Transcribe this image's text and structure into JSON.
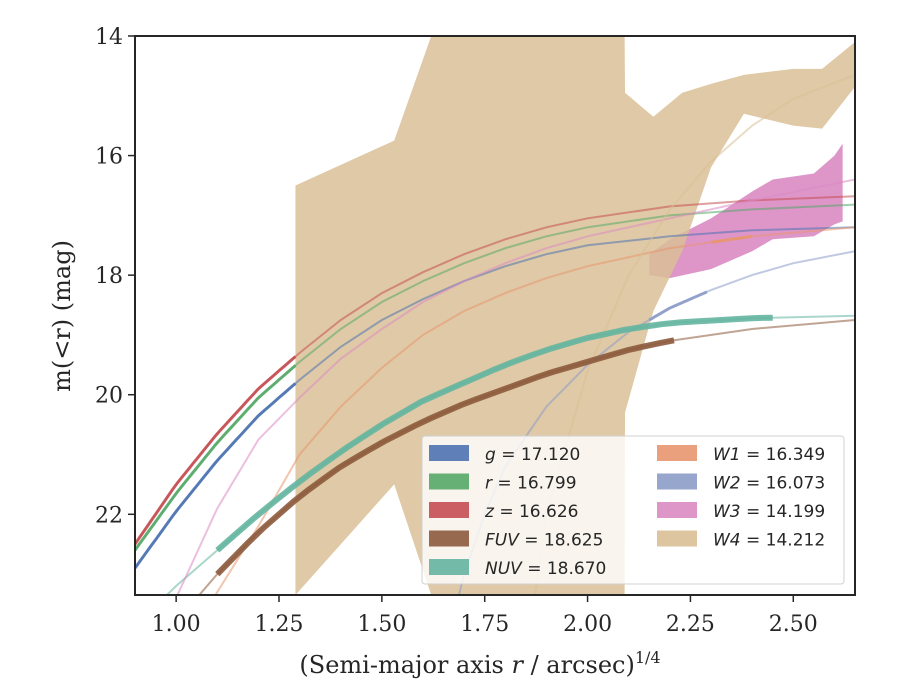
{
  "chart_data": {
    "type": "area",
    "title": "",
    "xlabel": "(Semi-major axis r / arcsec)",
    "xlabel_italic_symbol": "r",
    "xlabel_superscript": "1/4",
    "ylabel": "m(<r) (mag)",
    "xlim": [
      0.9,
      2.65
    ],
    "ylim": [
      23.35,
      14.0
    ],
    "y_inverted": true,
    "xticks": [
      1.0,
      1.25,
      1.5,
      1.75,
      2.0,
      2.25,
      2.5
    ],
    "xtick_labels": [
      "1.00",
      "1.25",
      "1.50",
      "1.75",
      "2.00",
      "2.25",
      "2.50"
    ],
    "yticks": [
      14,
      16,
      18,
      20,
      22
    ],
    "ytick_labels": [
      "14",
      "16",
      "18",
      "20",
      "22"
    ],
    "grid": false,
    "legend_position": "lower-right",
    "legend_columns": 2,
    "series": [
      {
        "name": "g = 17.120",
        "sym": "g",
        "val": "17.120",
        "color": "#4c72b0",
        "curve": [
          [
            0.9,
            22.9
          ],
          [
            1.0,
            21.95
          ],
          [
            1.1,
            21.1
          ],
          [
            1.2,
            20.35
          ],
          [
            1.3,
            19.75
          ],
          [
            1.4,
            19.2
          ],
          [
            1.5,
            18.75
          ],
          [
            1.6,
            18.4
          ],
          [
            1.7,
            18.1
          ],
          [
            1.8,
            17.85
          ],
          [
            1.9,
            17.65
          ],
          [
            2.0,
            17.5
          ],
          [
            2.2,
            17.35
          ],
          [
            2.4,
            17.25
          ],
          [
            2.65,
            17.2
          ]
        ],
        "measured_range": [
          0.9,
          1.29
        ]
      },
      {
        "name": "r = 16.799",
        "sym": "r",
        "val": "16.799",
        "color": "#55a868",
        "curve": [
          [
            0.9,
            22.6
          ],
          [
            1.0,
            21.65
          ],
          [
            1.1,
            20.8
          ],
          [
            1.2,
            20.05
          ],
          [
            1.3,
            19.45
          ],
          [
            1.4,
            18.9
          ],
          [
            1.5,
            18.45
          ],
          [
            1.6,
            18.1
          ],
          [
            1.7,
            17.8
          ],
          [
            1.8,
            17.55
          ],
          [
            1.9,
            17.35
          ],
          [
            2.0,
            17.2
          ],
          [
            2.2,
            17.0
          ],
          [
            2.4,
            16.9
          ],
          [
            2.65,
            16.82
          ]
        ],
        "measured_range": [
          0.9,
          1.29
        ]
      },
      {
        "name": "z = 16.626",
        "sym": "z",
        "val": "16.626",
        "color": "#c44e52",
        "curve": [
          [
            0.9,
            22.5
          ],
          [
            1.0,
            21.5
          ],
          [
            1.1,
            20.65
          ],
          [
            1.2,
            19.9
          ],
          [
            1.3,
            19.3
          ],
          [
            1.4,
            18.75
          ],
          [
            1.5,
            18.3
          ],
          [
            1.6,
            17.95
          ],
          [
            1.7,
            17.65
          ],
          [
            1.8,
            17.4
          ],
          [
            1.9,
            17.2
          ],
          [
            2.0,
            17.05
          ],
          [
            2.2,
            16.85
          ],
          [
            2.4,
            16.75
          ],
          [
            2.65,
            16.68
          ]
        ],
        "measured_range": [
          0.9,
          1.29
        ]
      },
      {
        "name": "FUV = 18.625",
        "sym": "FUV",
        "val": "18.625",
        "color": "#8c5a3c",
        "curve": [
          [
            1.05,
            23.4
          ],
          [
            1.1,
            23.0
          ],
          [
            1.2,
            22.3
          ],
          [
            1.3,
            21.7
          ],
          [
            1.4,
            21.2
          ],
          [
            1.5,
            20.8
          ],
          [
            1.6,
            20.45
          ],
          [
            1.7,
            20.15
          ],
          [
            1.8,
            19.9
          ],
          [
            1.9,
            19.65
          ],
          [
            2.0,
            19.45
          ],
          [
            2.1,
            19.25
          ],
          [
            2.2,
            19.1
          ],
          [
            2.4,
            18.9
          ],
          [
            2.65,
            18.75
          ]
        ],
        "measured_range": [
          1.1,
          2.21
        ]
      },
      {
        "name": "NUV = 18.670",
        "sym": "NUV",
        "val": "18.670",
        "color": "#64b5a0",
        "curve": [
          [
            0.97,
            23.4
          ],
          [
            1.0,
            23.2
          ],
          [
            1.1,
            22.6
          ],
          [
            1.2,
            22.0
          ],
          [
            1.3,
            21.45
          ],
          [
            1.4,
            20.95
          ],
          [
            1.5,
            20.5
          ],
          [
            1.6,
            20.1
          ],
          [
            1.7,
            19.8
          ],
          [
            1.8,
            19.5
          ],
          [
            1.9,
            19.25
          ],
          [
            2.0,
            19.05
          ],
          [
            2.1,
            18.9
          ],
          [
            2.2,
            18.8
          ],
          [
            2.4,
            18.72
          ],
          [
            2.65,
            18.68
          ]
        ],
        "measured_range": [
          1.1,
          2.45
        ]
      },
      {
        "name": "W1 = 16.349",
        "sym": "W1",
        "val": "16.349",
        "color": "#e8966e",
        "curve": [
          [
            1.0,
            24.4
          ],
          [
            1.1,
            23.3
          ],
          [
            1.2,
            22.2
          ],
          [
            1.3,
            21.0
          ],
          [
            1.4,
            20.2
          ],
          [
            1.5,
            19.55
          ],
          [
            1.6,
            19.0
          ],
          [
            1.7,
            18.6
          ],
          [
            1.8,
            18.3
          ],
          [
            1.9,
            18.05
          ],
          [
            2.0,
            17.85
          ],
          [
            2.2,
            17.55
          ],
          [
            2.4,
            17.35
          ],
          [
            2.65,
            17.2
          ]
        ],
        "measured_range": [
          2.3,
          2.4
        ]
      },
      {
        "name": "W2 = 16.073",
        "sym": "W2",
        "val": "16.073",
        "color": "#8c9cc8",
        "curve": [
          [
            1.65,
            24.4
          ],
          [
            1.7,
            23.0
          ],
          [
            1.75,
            22.0
          ],
          [
            1.8,
            21.2
          ],
          [
            1.9,
            20.2
          ],
          [
            2.0,
            19.5
          ],
          [
            2.1,
            18.95
          ],
          [
            2.2,
            18.55
          ],
          [
            2.3,
            18.25
          ],
          [
            2.4,
            18.0
          ],
          [
            2.5,
            17.8
          ],
          [
            2.65,
            17.6
          ]
        ],
        "measured_range": [
          2.15,
          2.29
        ]
      },
      {
        "name": "W3 = 14.199",
        "sym": "W3",
        "val": "14.199",
        "color": "#da8bc3",
        "curve": [
          [
            1.0,
            23.4
          ],
          [
            1.1,
            21.9
          ],
          [
            1.2,
            20.75
          ],
          [
            1.3,
            20.05
          ],
          [
            1.4,
            19.4
          ],
          [
            1.5,
            18.9
          ],
          [
            1.6,
            18.45
          ],
          [
            1.7,
            18.1
          ],
          [
            1.8,
            17.8
          ],
          [
            1.9,
            17.55
          ],
          [
            2.0,
            17.35
          ],
          [
            2.2,
            17.05
          ],
          [
            2.4,
            16.75
          ],
          [
            2.65,
            16.4
          ]
        ],
        "band": [
          [
            2.15,
            17.65,
            18.0
          ],
          [
            2.2,
            17.4,
            18.05
          ],
          [
            2.3,
            17.05,
            17.9
          ],
          [
            2.4,
            16.6,
            17.6
          ],
          [
            2.45,
            16.4,
            17.4
          ],
          [
            2.55,
            16.3,
            17.35
          ],
          [
            2.6,
            16.0,
            17.15
          ],
          [
            2.62,
            15.8,
            17.1
          ]
        ]
      },
      {
        "name": "W4 = 14.212",
        "sym": "W4",
        "val": "14.212",
        "color": "#d9bf96",
        "curve": [
          [
            1.85,
            24.4
          ],
          [
            1.9,
            22.0
          ],
          [
            2.0,
            19.6
          ],
          [
            2.1,
            18.0
          ],
          [
            2.2,
            16.9
          ],
          [
            2.3,
            16.1
          ],
          [
            2.4,
            15.5
          ],
          [
            2.5,
            15.05
          ],
          [
            2.65,
            14.65
          ]
        ],
        "band": [
          [
            1.29,
            16.5,
            23.35
          ],
          [
            1.53,
            15.75,
            21.5
          ],
          [
            1.62,
            14.0,
            23.35
          ],
          [
            2.09,
            14.0,
            23.35
          ],
          [
            2.091,
            14.95,
            20.3
          ],
          [
            2.16,
            15.35,
            18.6
          ],
          [
            2.23,
            14.95,
            17.6
          ],
          [
            2.3,
            14.8,
            16.2
          ],
          [
            2.38,
            14.65,
            15.3
          ],
          [
            2.5,
            14.55,
            15.5
          ],
          [
            2.57,
            14.55,
            15.55
          ],
          [
            2.65,
            14.1,
            14.85
          ]
        ]
      }
    ]
  }
}
